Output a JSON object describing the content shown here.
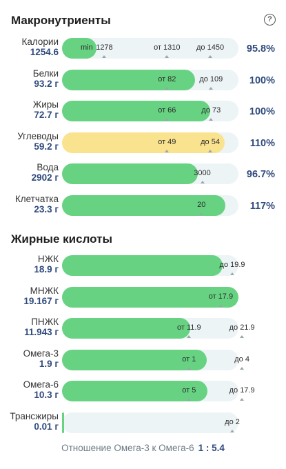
{
  "macros": {
    "title": "Макронутриенты",
    "help_icon": "?",
    "rows": [
      {
        "name": "Калории",
        "value": "1254.6",
        "percent": "95.8%",
        "fill": 0.195,
        "color": "green",
        "marks": [
          {
            "text": "min",
            "pos": 0.14
          },
          {
            "text": "1278",
            "pos": 0.24
          },
          {
            "text": "от 1310",
            "pos": 0.595
          },
          {
            "text": "до 1450",
            "pos": 0.84
          }
        ]
      },
      {
        "name": "Белки",
        "value": "93.2 г",
        "percent": "100%",
        "fill": 0.755,
        "color": "green",
        "marks": [
          {
            "text": "от 82",
            "pos": 0.595
          },
          {
            "text": "до 109",
            "pos": 0.845
          }
        ]
      },
      {
        "name": "Жиры",
        "value": "72.7 г",
        "percent": "100%",
        "fill": 0.84,
        "color": "green",
        "marks": [
          {
            "text": "от 66",
            "pos": 0.595
          },
          {
            "text": "до 73",
            "pos": 0.845
          }
        ]
      },
      {
        "name": "Углеводы",
        "value": "59.2 г",
        "percent": "110%",
        "fill": 0.92,
        "color": "yellow",
        "marks": [
          {
            "text": "от 49",
            "pos": 0.595
          },
          {
            "text": "до 54",
            "pos": 0.84
          }
        ]
      },
      {
        "name": "Вода",
        "value": "2902 г",
        "percent": "96.7%",
        "fill": 0.77,
        "color": "green",
        "marks": [
          {
            "text": "3000",
            "pos": 0.795
          }
        ]
      },
      {
        "name": "Клетчатка",
        "value": "23.3 г",
        "percent": "117%",
        "fill": 0.925,
        "color": "green",
        "marks": [
          {
            "text": "20",
            "pos": 0.79
          }
        ]
      }
    ]
  },
  "fats": {
    "title": "Жирные кислоты",
    "rows": [
      {
        "name": "НЖК",
        "value": "18.9 г",
        "fill": 0.91,
        "color": "green",
        "marks": [
          {
            "text": "до 19.9",
            "pos": 0.965
          }
        ]
      },
      {
        "name": "МНЖК",
        "value": "19.167 г",
        "fill": 1.0,
        "color": "green",
        "marks": [
          {
            "text": "от 17.9",
            "pos": 0.9
          }
        ]
      },
      {
        "name": "ПНЖК",
        "value": "11.943 г",
        "fill": 0.725,
        "color": "green",
        "marks": [
          {
            "text": "от 11.9",
            "pos": 0.72
          },
          {
            "text": "до 21.9",
            "pos": 1.02
          }
        ]
      },
      {
        "name": "Омега-3",
        "value": "1.9 г",
        "fill": 0.82,
        "color": "green",
        "marks": [
          {
            "text": "от 1",
            "pos": 0.72
          },
          {
            "text": "до 4",
            "pos": 1.02
          }
        ]
      },
      {
        "name": "Омега-6",
        "value": "10.3 г",
        "fill": 0.825,
        "color": "green",
        "marks": [
          {
            "text": "от 5",
            "pos": 0.72
          },
          {
            "text": "до 17.9",
            "pos": 1.02
          }
        ]
      },
      {
        "name": "Трансжиры",
        "value": "0.01 г",
        "fill": 0.01,
        "color": "green",
        "marks": [
          {
            "text": "до 2",
            "pos": 0.965
          }
        ]
      }
    ]
  },
  "ratio": {
    "label": "Отношение Омега-3 к Омега-6",
    "value": "1 : 5.4"
  }
}
